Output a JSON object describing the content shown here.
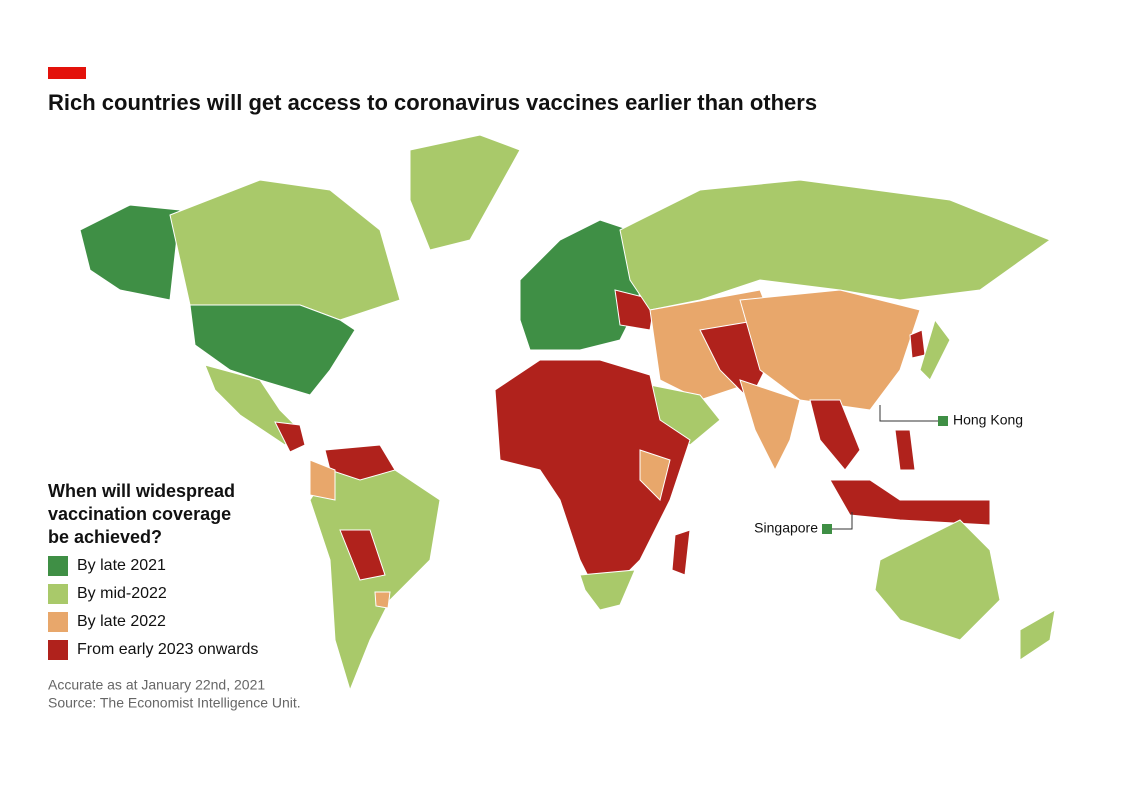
{
  "title": "Rich countries will get access to coronavirus vaccines earlier than others",
  "legend": {
    "title": [
      "When will widespread",
      "vaccination coverage",
      "be achieved?"
    ],
    "items": [
      {
        "label": "By late 2021",
        "color": "#3f8f45"
      },
      {
        "label": "By mid-2022",
        "color": "#a9c96a"
      },
      {
        "label": "By late 2022",
        "color": "#e8a76b"
      },
      {
        "label": "From early 2023 onwards",
        "color": "#b0221c"
      }
    ]
  },
  "annotations": [
    "Hong Kong",
    "Singapore"
  ],
  "footnotes": [
    "Accurate as at January 22nd, 2021",
    "Source: The Economist Intelligence Unit."
  ]
}
